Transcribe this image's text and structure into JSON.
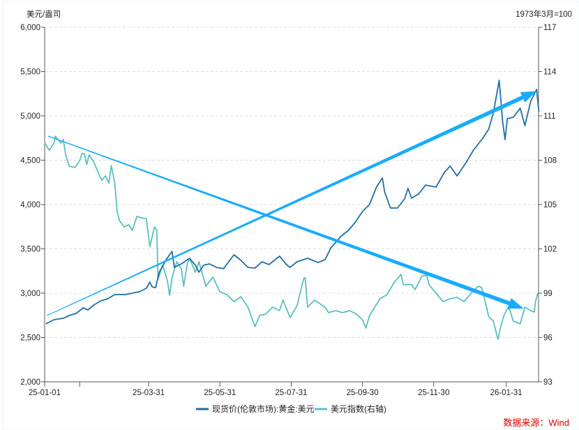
{
  "chart_data": {
    "type": "line",
    "left_axis": {
      "title": "美元/盎司",
      "range": [
        2000,
        6000
      ],
      "ticks": [
        2000,
        2500,
        3000,
        3500,
        4000,
        4500,
        5000,
        5500,
        6000
      ],
      "tick_labels": [
        "2,000",
        "2,500",
        "3,000",
        "3,500",
        "4,000",
        "4,500",
        "5,000",
        "5,500",
        "6,000"
      ]
    },
    "right_axis": {
      "title": "1973年3月=100",
      "range": [
        93,
        117
      ],
      "ticks": [
        93,
        96,
        99,
        102,
        105,
        108,
        111,
        114,
        117
      ],
      "tick_labels": [
        "93",
        "96",
        "99",
        "102",
        "105",
        "108",
        "111",
        "114",
        "117"
      ]
    },
    "x_axis": {
      "range": [
        "2025-01-01",
        "2026-02-28"
      ],
      "ticks": [
        "2025-01-01",
        "2025-01-31",
        "2025-03-31",
        "2025-05-31",
        "2025-07-31",
        "2025-09-30",
        "2025-11-30",
        "2026-01-31"
      ],
      "tick_labels": [
        "25-01-01",
        "",
        "25-03-31",
        "25-05-31",
        "25-07-31",
        "25-09-30",
        "25-11-30",
        "26-01-31"
      ]
    },
    "grid": true,
    "legend_position": "bottom",
    "series": [
      {
        "name": "现货价(伦敦市场):黄金:美元",
        "axis": "left",
        "color": "#1f6fa3",
        "points": [
          [
            "2025-01-02",
            2654
          ],
          [
            "2025-01-09",
            2701
          ],
          [
            "2025-01-17",
            2717
          ],
          [
            "2025-01-22",
            2748
          ],
          [
            "2025-01-28",
            2772
          ],
          [
            "2025-02-03",
            2835
          ],
          [
            "2025-02-07",
            2811
          ],
          [
            "2025-02-12",
            2866
          ],
          [
            "2025-02-18",
            2913
          ],
          [
            "2025-02-24",
            2937
          ],
          [
            "2025-03-02",
            2984
          ],
          [
            "2025-03-11",
            2984
          ],
          [
            "2025-03-17",
            3000
          ],
          [
            "2025-03-23",
            3016
          ],
          [
            "2025-03-29",
            3055
          ],
          [
            "2025-04-01",
            3126
          ],
          [
            "2025-04-03",
            3071
          ],
          [
            "2025-04-06",
            3063
          ],
          [
            "2025-04-09",
            3236
          ],
          [
            "2025-04-15",
            3378
          ],
          [
            "2025-04-20",
            3472
          ],
          [
            "2025-04-22",
            3291
          ],
          [
            "2025-04-28",
            3331
          ],
          [
            "2025-05-05",
            3394
          ],
          [
            "2025-05-10",
            3315
          ],
          [
            "2025-05-13",
            3236
          ],
          [
            "2025-05-17",
            3315
          ],
          [
            "2025-05-22",
            3331
          ],
          [
            "2025-05-28",
            3291
          ],
          [
            "2025-06-03",
            3276
          ],
          [
            "2025-06-12",
            3433
          ],
          [
            "2025-06-18",
            3370
          ],
          [
            "2025-06-24",
            3291
          ],
          [
            "2025-06-30",
            3283
          ],
          [
            "2025-07-06",
            3354
          ],
          [
            "2025-07-12",
            3323
          ],
          [
            "2025-07-21",
            3417
          ],
          [
            "2025-07-27",
            3323
          ],
          [
            "2025-07-30",
            3291
          ],
          [
            "2025-08-05",
            3354
          ],
          [
            "2025-08-14",
            3394
          ],
          [
            "2025-08-23",
            3346
          ],
          [
            "2025-08-29",
            3378
          ],
          [
            "2025-09-03",
            3512
          ],
          [
            "2025-09-12",
            3646
          ],
          [
            "2025-09-18",
            3709
          ],
          [
            "2025-09-24",
            3803
          ],
          [
            "2025-09-30",
            3921
          ],
          [
            "2025-10-06",
            4000
          ],
          [
            "2025-10-12",
            4197
          ],
          [
            "2025-10-17",
            4299
          ],
          [
            "2025-10-19",
            4142
          ],
          [
            "2025-10-24",
            3961
          ],
          [
            "2025-10-30",
            3961
          ],
          [
            "2025-11-05",
            4063
          ],
          [
            "2025-11-08",
            4181
          ],
          [
            "2025-11-11",
            4071
          ],
          [
            "2025-11-17",
            4118
          ],
          [
            "2025-11-23",
            4220
          ],
          [
            "2025-12-02",
            4197
          ],
          [
            "2025-12-09",
            4362
          ],
          [
            "2025-12-14",
            4433
          ],
          [
            "2025-12-20",
            4323
          ],
          [
            "2025-12-28",
            4480
          ],
          [
            "2026-01-03",
            4614
          ],
          [
            "2026-01-11",
            4748
          ],
          [
            "2026-01-16",
            4850
          ],
          [
            "2026-01-20",
            5031
          ],
          [
            "2026-01-25",
            5402
          ],
          [
            "2026-01-28",
            4929
          ],
          [
            "2026-01-30",
            4732
          ],
          [
            "2026-02-01",
            4969
          ],
          [
            "2026-02-06",
            4984
          ],
          [
            "2026-02-12",
            5087
          ],
          [
            "2026-02-16",
            4890
          ],
          [
            "2026-02-21",
            5165
          ],
          [
            "2026-02-26",
            5299
          ],
          [
            "2026-02-28",
            5047
          ]
        ]
      },
      {
        "name": "美元指数(右轴)",
        "axis": "right",
        "color": "#5bbfbf",
        "points": [
          [
            "2025-01-01",
            109.16
          ],
          [
            "2025-01-05",
            108.68
          ],
          [
            "2025-01-09",
            109.16
          ],
          [
            "2025-01-10",
            109.63
          ],
          [
            "2025-01-15",
            109.16
          ],
          [
            "2025-01-17",
            109.39
          ],
          [
            "2025-01-19",
            108.36
          ],
          [
            "2025-01-22",
            107.6
          ],
          [
            "2025-01-27",
            107.51
          ],
          [
            "2025-01-31",
            107.98
          ],
          [
            "2025-02-02",
            108.45
          ],
          [
            "2025-02-04",
            108.45
          ],
          [
            "2025-02-06",
            107.7
          ],
          [
            "2025-02-08",
            108.36
          ],
          [
            "2025-02-12",
            107.88
          ],
          [
            "2025-02-17",
            106.94
          ],
          [
            "2025-02-19",
            106.65
          ],
          [
            "2025-02-22",
            106.94
          ],
          [
            "2025-02-25",
            106.46
          ],
          [
            "2025-02-27",
            107.64
          ],
          [
            "2025-03-02",
            106.46
          ],
          [
            "2025-03-04",
            104.53
          ],
          [
            "2025-03-06",
            103.91
          ],
          [
            "2025-03-10",
            103.49
          ],
          [
            "2025-03-14",
            103.63
          ],
          [
            "2025-03-17",
            103.25
          ],
          [
            "2025-03-21",
            104.2
          ],
          [
            "2025-03-25",
            104.1
          ],
          [
            "2025-03-29",
            104.05
          ],
          [
            "2025-04-01",
            102.16
          ],
          [
            "2025-04-05",
            103.49
          ],
          [
            "2025-04-07",
            103.25
          ],
          [
            "2025-04-08",
            99.94
          ],
          [
            "2025-04-12",
            100.89
          ],
          [
            "2025-04-16",
            99.85
          ],
          [
            "2025-04-18",
            98.86
          ],
          [
            "2025-04-20",
            100.04
          ],
          [
            "2025-04-24",
            101.13
          ],
          [
            "2025-04-28",
            100.65
          ],
          [
            "2025-04-30",
            99.47
          ],
          [
            "2025-05-03",
            100.98
          ],
          [
            "2025-05-05",
            101.36
          ],
          [
            "2025-05-10",
            100.42
          ],
          [
            "2025-05-13",
            101.13
          ],
          [
            "2025-05-19",
            99.47
          ],
          [
            "2025-05-25",
            100.09
          ],
          [
            "2025-05-31",
            99.09
          ],
          [
            "2025-06-06",
            98.9
          ],
          [
            "2025-06-12",
            98.43
          ],
          [
            "2025-06-18",
            98.76
          ],
          [
            "2025-06-24",
            98.05
          ],
          [
            "2025-06-30",
            96.73
          ],
          [
            "2025-07-04",
            97.49
          ],
          [
            "2025-07-09",
            97.58
          ],
          [
            "2025-07-15",
            98.05
          ],
          [
            "2025-07-21",
            97.82
          ],
          [
            "2025-07-24",
            98.53
          ],
          [
            "2025-07-30",
            97.35
          ],
          [
            "2025-08-05",
            98.15
          ],
          [
            "2025-08-09",
            99.47
          ],
          [
            "2025-08-11",
            100.04
          ],
          [
            "2025-08-12",
            100.04
          ],
          [
            "2025-08-14",
            98.05
          ],
          [
            "2025-08-20",
            98.53
          ],
          [
            "2025-08-29",
            98.05
          ],
          [
            "2025-09-01",
            97.68
          ],
          [
            "2025-09-07",
            97.82
          ],
          [
            "2025-09-13",
            97.68
          ],
          [
            "2025-09-19",
            97.82
          ],
          [
            "2025-09-25",
            97.58
          ],
          [
            "2025-09-30",
            97.2
          ],
          [
            "2025-10-03",
            96.64
          ],
          [
            "2025-10-06",
            97.49
          ],
          [
            "2025-10-15",
            98.62
          ],
          [
            "2025-10-21",
            98.9
          ],
          [
            "2025-10-27",
            99.71
          ],
          [
            "2025-11-02",
            100.27
          ],
          [
            "2025-11-04",
            99.57
          ],
          [
            "2025-11-11",
            99.57
          ],
          [
            "2025-11-14",
            99.24
          ],
          [
            "2025-11-20",
            100.18
          ],
          [
            "2025-11-24",
            100.18
          ],
          [
            "2025-11-26",
            99.57
          ],
          [
            "2025-12-02",
            99.0
          ],
          [
            "2025-12-08",
            98.43
          ],
          [
            "2025-12-14",
            98.62
          ],
          [
            "2025-12-20",
            98.72
          ],
          [
            "2025-12-26",
            98.43
          ],
          [
            "2026-01-01",
            99.0
          ],
          [
            "2026-01-07",
            99.47
          ],
          [
            "2026-01-10",
            99.38
          ],
          [
            "2026-01-13",
            98.43
          ],
          [
            "2026-01-16",
            97.44
          ],
          [
            "2026-01-20",
            97.11
          ],
          [
            "2026-01-23",
            96.17
          ],
          [
            "2026-01-24",
            95.88
          ],
          [
            "2026-01-26",
            96.64
          ],
          [
            "2026-01-29",
            97.49
          ],
          [
            "2026-02-01",
            97.96
          ],
          [
            "2026-02-03",
            97.91
          ],
          [
            "2026-02-06",
            97.11
          ],
          [
            "2026-02-12",
            96.92
          ],
          [
            "2026-02-16",
            98.05
          ],
          [
            "2026-02-21",
            97.82
          ],
          [
            "2026-02-24",
            97.72
          ],
          [
            "2026-02-25",
            98.39
          ],
          [
            "2026-02-27",
            99.0
          ]
        ]
      }
    ],
    "annotations": [
      {
        "type": "arrow",
        "axis": "left",
        "from": [
          "2025-01-03",
          2748
        ],
        "to": [
          "2026-02-26",
          5280
        ],
        "color": "#1aabff"
      },
      {
        "type": "arrow",
        "axis": "right",
        "from": [
          "2025-01-04",
          109.63
        ],
        "to": [
          "2026-02-15",
          97.96
        ],
        "color": "#1aabff"
      }
    ]
  },
  "source": "数据来源：Wind"
}
